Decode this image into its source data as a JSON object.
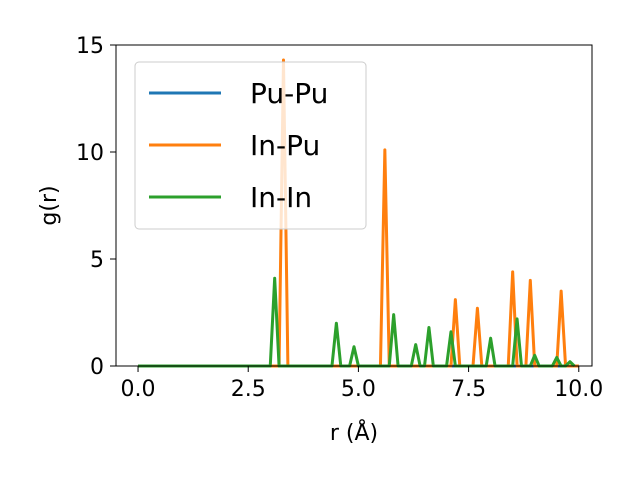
{
  "chart_data": {
    "type": "line",
    "title": "",
    "xlabel": "r (Å)",
    "ylabel": "g(r)",
    "xlim": [
      -0.5,
      10.3
    ],
    "ylim": [
      0,
      15
    ],
    "xticks": [
      "0.0",
      "2.5",
      "5.0",
      "7.5",
      "10.0"
    ],
    "yticks": [
      "0",
      "5",
      "10",
      "15"
    ],
    "grid": false,
    "legend_position": "upper-left",
    "series": [
      {
        "name": "Pu-Pu",
        "color": "#1f77b4",
        "x": [
          0.0,
          10.0
        ],
        "y": [
          0.0,
          0.0
        ]
      },
      {
        "name": "In-Pu",
        "color": "#ff7f0e",
        "x": [
          0.0,
          3.2,
          3.3,
          3.4,
          5.5,
          5.6,
          5.7,
          7.1,
          7.2,
          7.3,
          7.6,
          7.7,
          7.8,
          8.4,
          8.5,
          8.6,
          8.8,
          8.9,
          9.0,
          9.5,
          9.6,
          9.7,
          10.0
        ],
        "y": [
          0.0,
          0.0,
          14.3,
          0.0,
          0.0,
          10.1,
          0.0,
          0.0,
          3.1,
          0.0,
          0.0,
          2.7,
          0.0,
          0.0,
          4.4,
          0.0,
          0.0,
          4.0,
          0.0,
          0.0,
          3.5,
          0.0,
          0.0
        ]
      },
      {
        "name": "In-In",
        "color": "#2ca02c",
        "x": [
          0.0,
          3.0,
          3.1,
          3.2,
          4.4,
          4.5,
          4.6,
          4.8,
          4.9,
          5.0,
          5.7,
          5.8,
          5.9,
          6.2,
          6.3,
          6.4,
          6.5,
          6.6,
          6.7,
          7.0,
          7.1,
          7.2,
          7.9,
          8.0,
          8.1,
          8.5,
          8.6,
          8.7,
          8.9,
          9.0,
          9.1,
          9.4,
          9.5,
          9.6,
          9.7,
          9.8,
          9.9
        ],
        "y": [
          0.0,
          0.0,
          4.1,
          0.0,
          0.0,
          2.0,
          0.0,
          0.0,
          0.9,
          0.0,
          0.0,
          2.4,
          0.0,
          0.0,
          1.0,
          0.0,
          0.0,
          1.8,
          0.0,
          0.0,
          1.6,
          0.0,
          0.0,
          1.3,
          0.0,
          0.0,
          2.2,
          0.0,
          0.0,
          0.5,
          0.0,
          0.0,
          0.4,
          0.0,
          0.0,
          0.2,
          0.0
        ]
      }
    ]
  }
}
